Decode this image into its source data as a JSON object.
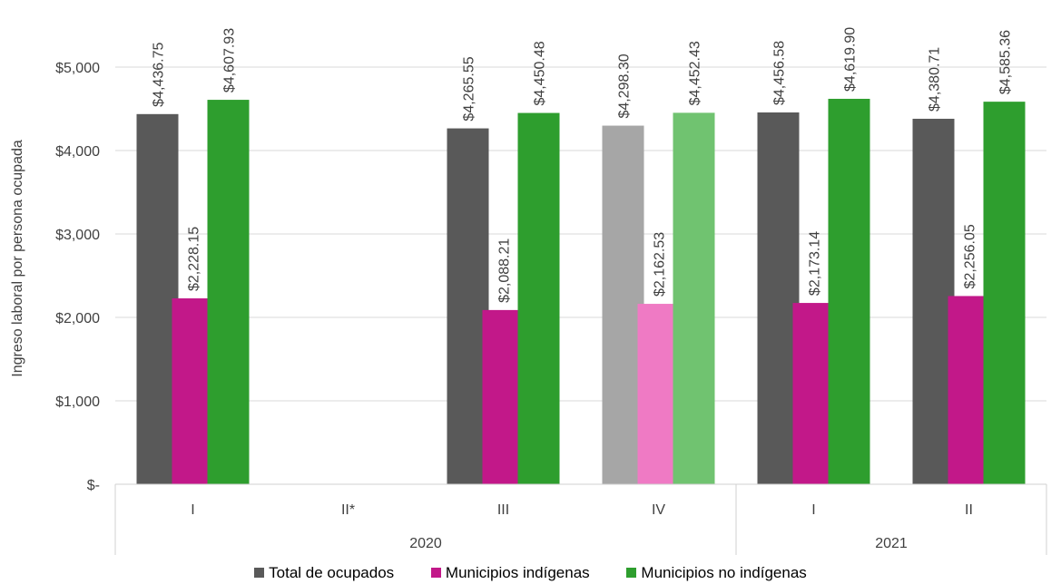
{
  "chart_data": {
    "type": "bar",
    "title": "",
    "ylabel": "Ingreso laboral por persona ocupada",
    "xlabel": "",
    "ylim": [
      0,
      5000
    ],
    "y_ticks": [
      {
        "value": 0,
        "label": "$-"
      },
      {
        "value": 1000,
        "label": "$1,000"
      },
      {
        "value": 2000,
        "label": "$2,000"
      },
      {
        "value": 3000,
        "label": "$3,000"
      },
      {
        "value": 4000,
        "label": "$4,000"
      },
      {
        "value": 5000,
        "label": "$5,000"
      }
    ],
    "grid": true,
    "legend_position": "bottom",
    "categories": [
      "I",
      "II*",
      "III",
      "IV",
      "I",
      "II"
    ],
    "years": [
      {
        "label": "2020",
        "categories": [
          "I",
          "II*",
          "III",
          "IV"
        ]
      },
      {
        "label": "2021",
        "categories": [
          "I",
          "II"
        ]
      }
    ],
    "series": [
      {
        "name": "Total de ocupados",
        "color": "#595959",
        "highlight_color": "#a6a6a6",
        "values": [
          4436.75,
          null,
          4265.55,
          4298.3,
          4456.58,
          4380.71
        ],
        "labels": [
          "$4,436.75",
          "",
          "$4,265.55",
          "$4,298.30",
          "$4,456.58",
          "$4,380.71"
        ]
      },
      {
        "name": "Municipios indígenas",
        "color": "#c21889",
        "highlight_color": "#ef7ac4",
        "values": [
          2228.15,
          null,
          2088.21,
          2162.53,
          2173.14,
          2256.05
        ],
        "labels": [
          "$2,228.15",
          "",
          "$2,088.21",
          "$2,162.53",
          "$2,173.14",
          "$2,256.05"
        ]
      },
      {
        "name": "Municipios no indígenas",
        "color": "#2e9e2e",
        "highlight_color": "#70c370",
        "values": [
          4607.93,
          null,
          4450.48,
          4452.43,
          4619.9,
          4585.36
        ],
        "labels": [
          "$4,607.93",
          "",
          "$4,450.48",
          "$4,452.43",
          "$4,619.90",
          "$4,585.36"
        ]
      }
    ],
    "highlighted_category_index": 3
  }
}
